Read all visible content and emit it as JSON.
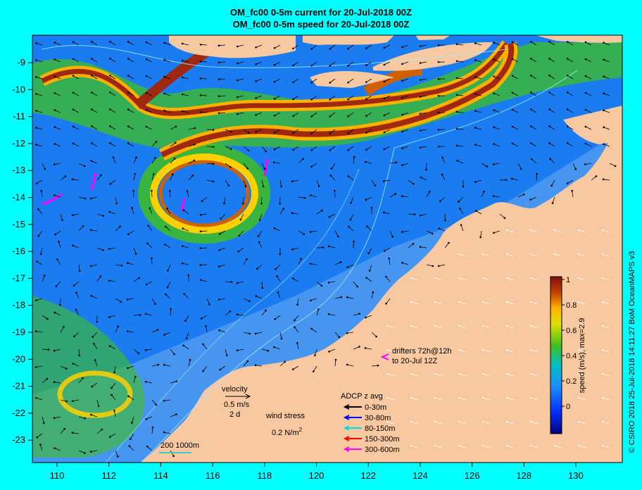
{
  "titles": {
    "line1": "OM_fc00 0-5m current for 20-Jul-2018 00Z",
    "line2": "OM_fc00 0-5m speed for 20-Jul-2018 00Z"
  },
  "map": {
    "lon_range": [
      109,
      132
    ],
    "lat_range": [
      -24,
      -8
    ],
    "lon_ticks": [
      "110",
      "112",
      "114",
      "116",
      "118",
      "120",
      "122",
      "124",
      "126",
      "128",
      "130"
    ],
    "lat_ticks": [
      "-9",
      "-10",
      "-11",
      "-12",
      "-13",
      "-14",
      "-15",
      "-16",
      "-17",
      "-18",
      "-19",
      "-20",
      "-21",
      "-22",
      "-23"
    ],
    "colors": {
      "land": "#f8c8a0",
      "ocean_low": "#1a7cf0",
      "shelf": "#5aa0f0",
      "background": "#00ffff"
    }
  },
  "colorbar": {
    "ticks": [
      "1",
      "0.8",
      "0.6",
      "0.4",
      "0.2",
      "0"
    ],
    "label": "speed (m/s),  max=2.9"
  },
  "legend": {
    "velocity": {
      "title": "velocity",
      "speed": "0.5 m/s",
      "duration": "2 d"
    },
    "wind": {
      "title": "wind stress",
      "value": "0.2 N/m",
      "exponent": "2"
    },
    "scale": {
      "text": "200  1000m"
    },
    "drifters": {
      "line1": "drifters 72h@12h",
      "line2": "to 20-Jul 12Z"
    },
    "adcp": {
      "title": "ADCP z avg",
      "items": [
        {
          "label": "0-30m",
          "color": "#000000"
        },
        {
          "label": "30-80m",
          "color": "#0000ff"
        },
        {
          "label": "80-150m",
          "color": "#00e0e0"
        },
        {
          "label": "150-300m",
          "color": "#ff0000"
        },
        {
          "label": "300-600m",
          "color": "#ff00ff"
        }
      ]
    }
  },
  "credit": "© CSIRO 2018  25-Jul-2018 14:11:27 BoM OceanMAPS v3"
}
